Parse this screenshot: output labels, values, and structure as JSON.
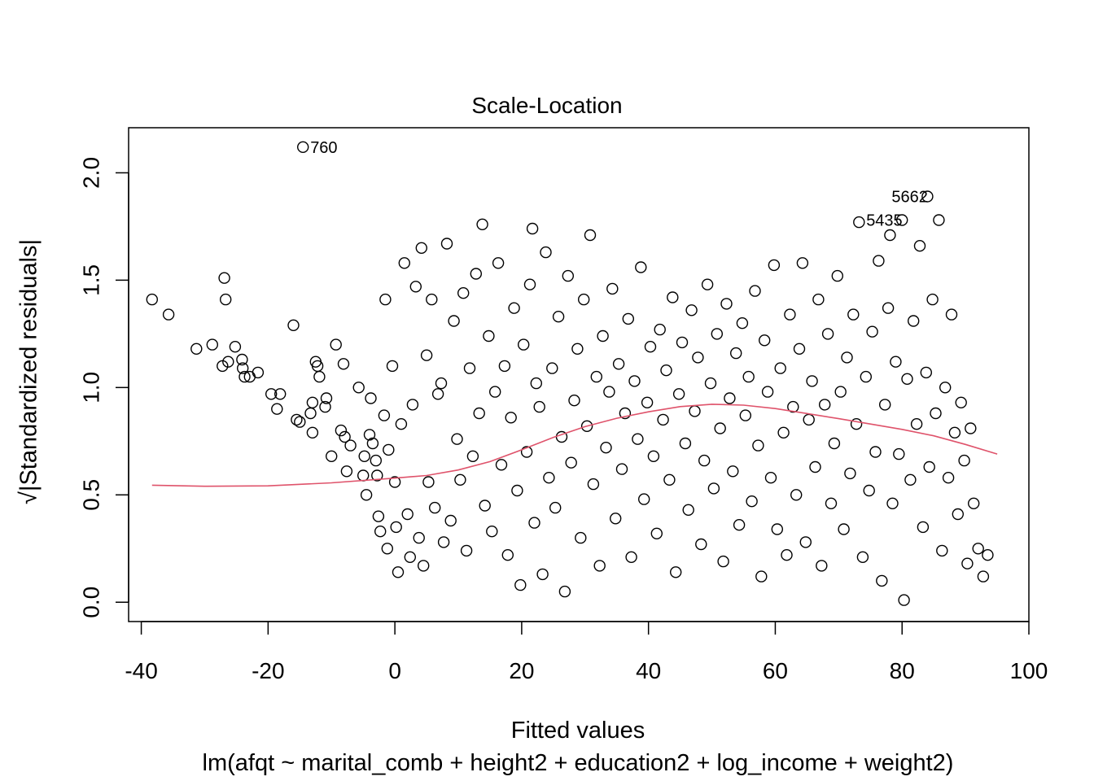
{
  "chart_data": {
    "type": "scatter",
    "title": "Scale-Location",
    "xlabel": "Fitted values",
    "ylabel": "√|Standardized residuals|",
    "subtitle": "lm(afqt ~ marital_comb + height2 + education2 + log_income + weight2)",
    "xlim": [
      -42,
      100
    ],
    "ylim": [
      -0.09,
      2.21
    ],
    "xticks": [
      -40,
      -20,
      0,
      20,
      40,
      60,
      80,
      100
    ],
    "yticks": [
      0.0,
      0.5,
      1.0,
      1.5,
      2.0
    ],
    "ytick_labels": [
      "0.0",
      "0.5",
      "1.0",
      "1.5",
      "2.0"
    ],
    "grid": false,
    "point_color": "#000000",
    "smoother_color": "#DF536B",
    "labeled_points": [
      {
        "label": "760",
        "x": -14.5,
        "y": 2.12
      },
      {
        "label": "5662",
        "x": 84.0,
        "y": 1.89
      },
      {
        "label": "5435",
        "x": 80.0,
        "y": 1.78
      }
    ],
    "smoother": [
      [
        -38.3,
        0.545
      ],
      [
        -30,
        0.54
      ],
      [
        -20,
        0.542
      ],
      [
        -10,
        0.556
      ],
      [
        0,
        0.578
      ],
      [
        5,
        0.59
      ],
      [
        10,
        0.616
      ],
      [
        15,
        0.655
      ],
      [
        20,
        0.71
      ],
      [
        25,
        0.768
      ],
      [
        30,
        0.818
      ],
      [
        35,
        0.857
      ],
      [
        40,
        0.887
      ],
      [
        45,
        0.911
      ],
      [
        50,
        0.922
      ],
      [
        55,
        0.918
      ],
      [
        60,
        0.902
      ],
      [
        65,
        0.879
      ],
      [
        70,
        0.855
      ],
      [
        75,
        0.83
      ],
      [
        80,
        0.805
      ],
      [
        85,
        0.775
      ],
      [
        90,
        0.735
      ],
      [
        95,
        0.69
      ]
    ],
    "points": [
      [
        -38.3,
        1.41
      ],
      [
        -35.7,
        1.34
      ],
      [
        -31.3,
        1.18
      ],
      [
        -28.8,
        1.2
      ],
      [
        -27.2,
        1.1
      ],
      [
        -26.9,
        1.51
      ],
      [
        -26.7,
        1.41
      ],
      [
        -26.3,
        1.12
      ],
      [
        -25.2,
        1.19
      ],
      [
        -24.1,
        1.13
      ],
      [
        -24.0,
        1.09
      ],
      [
        -23.7,
        1.05
      ],
      [
        -22.9,
        1.05
      ],
      [
        -21.6,
        1.07
      ],
      [
        -19.5,
        0.97
      ],
      [
        -18.6,
        0.9
      ],
      [
        -18.1,
        0.97
      ],
      [
        -16.0,
        1.29
      ],
      [
        -15.5,
        0.85
      ],
      [
        -15.0,
        0.84
      ],
      [
        -13.3,
        0.88
      ],
      [
        -13.0,
        0.93
      ],
      [
        -13.0,
        0.79
      ],
      [
        -12.5,
        1.12
      ],
      [
        -12.2,
        1.1
      ],
      [
        -11.9,
        1.05
      ],
      [
        -11.0,
        0.91
      ],
      [
        -10.8,
        0.95
      ],
      [
        -10.0,
        0.68
      ],
      [
        -9.3,
        1.2
      ],
      [
        -8.5,
        0.8
      ],
      [
        -8.1,
        1.11
      ],
      [
        -7.9,
        0.77
      ],
      [
        -7.6,
        0.61
      ],
      [
        -7.0,
        0.73
      ],
      [
        -5.7,
        1.0
      ],
      [
        -5.0,
        0.59
      ],
      [
        -4.8,
        0.68
      ],
      [
        -4.5,
        0.5
      ],
      [
        -4.0,
        0.78
      ],
      [
        -3.8,
        0.95
      ],
      [
        -3.5,
        0.74
      ],
      [
        -3.0,
        0.66
      ],
      [
        -2.8,
        0.59
      ],
      [
        -2.6,
        0.4
      ],
      [
        -2.3,
        0.33
      ],
      [
        -1.7,
        0.87
      ],
      [
        -1.5,
        1.41
      ],
      [
        -1.2,
        0.25
      ],
      [
        -1.0,
        0.71
      ],
      [
        -0.4,
        1.1
      ],
      [
        0.0,
        0.56
      ],
      [
        0.2,
        0.35
      ],
      [
        0.5,
        0.14
      ],
      [
        1.0,
        0.83
      ],
      [
        1.5,
        1.58
      ],
      [
        2.0,
        0.41
      ],
      [
        2.4,
        0.21
      ],
      [
        2.8,
        0.92
      ],
      [
        3.3,
        1.47
      ],
      [
        3.8,
        0.3
      ],
      [
        4.2,
        1.65
      ],
      [
        4.5,
        0.17
      ],
      [
        5.0,
        1.15
      ],
      [
        5.3,
        0.56
      ],
      [
        5.8,
        1.41
      ],
      [
        6.3,
        0.44
      ],
      [
        6.8,
        0.97
      ],
      [
        7.3,
        1.02
      ],
      [
        7.7,
        0.28
      ],
      [
        8.2,
        1.67
      ],
      [
        8.8,
        0.38
      ],
      [
        9.3,
        1.31
      ],
      [
        9.8,
        0.76
      ],
      [
        10.3,
        0.57
      ],
      [
        10.8,
        1.44
      ],
      [
        11.3,
        0.24
      ],
      [
        11.8,
        1.09
      ],
      [
        12.3,
        0.68
      ],
      [
        12.8,
        1.53
      ],
      [
        13.3,
        0.88
      ],
      [
        13.8,
        1.76
      ],
      [
        14.2,
        0.45
      ],
      [
        14.8,
        1.24
      ],
      [
        15.3,
        0.33
      ],
      [
        15.8,
        0.98
      ],
      [
        16.3,
        1.58
      ],
      [
        16.8,
        0.64
      ],
      [
        17.3,
        1.1
      ],
      [
        17.8,
        0.22
      ],
      [
        18.3,
        0.86
      ],
      [
        18.8,
        1.37
      ],
      [
        19.3,
        0.52
      ],
      [
        19.8,
        0.08
      ],
      [
        20.3,
        1.2
      ],
      [
        20.8,
        0.7
      ],
      [
        21.3,
        1.48
      ],
      [
        21.7,
        1.74
      ],
      [
        22.0,
        0.37
      ],
      [
        22.3,
        1.02
      ],
      [
        22.8,
        0.91
      ],
      [
        23.3,
        0.13
      ],
      [
        23.8,
        1.63
      ],
      [
        24.3,
        0.58
      ],
      [
        24.8,
        1.09
      ],
      [
        25.3,
        0.44
      ],
      [
        25.8,
        1.33
      ],
      [
        26.3,
        0.77
      ],
      [
        26.8,
        0.05
      ],
      [
        27.3,
        1.52
      ],
      [
        27.8,
        0.65
      ],
      [
        28.3,
        0.94
      ],
      [
        28.8,
        1.18
      ],
      [
        29.3,
        0.3
      ],
      [
        29.8,
        1.41
      ],
      [
        30.3,
        0.82
      ],
      [
        30.8,
        1.71
      ],
      [
        31.3,
        0.55
      ],
      [
        31.8,
        1.05
      ],
      [
        32.3,
        0.17
      ],
      [
        32.8,
        1.24
      ],
      [
        33.3,
        0.72
      ],
      [
        33.8,
        0.98
      ],
      [
        34.3,
        1.46
      ],
      [
        34.8,
        0.39
      ],
      [
        35.3,
        1.11
      ],
      [
        35.8,
        0.62
      ],
      [
        36.3,
        0.88
      ],
      [
        36.8,
        1.32
      ],
      [
        37.3,
        0.21
      ],
      [
        37.8,
        1.03
      ],
      [
        38.3,
        0.76
      ],
      [
        38.8,
        1.56
      ],
      [
        39.3,
        0.48
      ],
      [
        39.8,
        0.93
      ],
      [
        40.3,
        1.19
      ],
      [
        40.8,
        0.68
      ],
      [
        41.3,
        0.32
      ],
      [
        41.8,
        1.27
      ],
      [
        42.3,
        0.85
      ],
      [
        42.8,
        1.08
      ],
      [
        43.3,
        0.57
      ],
      [
        43.8,
        1.42
      ],
      [
        44.3,
        0.14
      ],
      [
        44.8,
        0.97
      ],
      [
        45.3,
        1.21
      ],
      [
        45.8,
        0.74
      ],
      [
        46.3,
        0.43
      ],
      [
        46.8,
        1.36
      ],
      [
        47.3,
        0.89
      ],
      [
        47.8,
        1.14
      ],
      [
        48.3,
        0.27
      ],
      [
        48.8,
        0.66
      ],
      [
        49.3,
        1.48
      ],
      [
        49.8,
        1.02
      ],
      [
        50.3,
        0.53
      ],
      [
        50.8,
        1.25
      ],
      [
        51.3,
        0.81
      ],
      [
        51.8,
        0.19
      ],
      [
        52.3,
        1.39
      ],
      [
        52.8,
        0.95
      ],
      [
        53.3,
        0.61
      ],
      [
        53.8,
        1.16
      ],
      [
        54.3,
        0.36
      ],
      [
        54.8,
        1.3
      ],
      [
        55.3,
        0.87
      ],
      [
        55.8,
        1.05
      ],
      [
        56.3,
        0.47
      ],
      [
        56.8,
        1.45
      ],
      [
        57.3,
        0.73
      ],
      [
        57.8,
        0.12
      ],
      [
        58.3,
        1.22
      ],
      [
        58.8,
        0.98
      ],
      [
        59.3,
        0.58
      ],
      [
        59.8,
        1.57
      ],
      [
        60.3,
        0.34
      ],
      [
        60.8,
        1.09
      ],
      [
        61.3,
        0.79
      ],
      [
        61.8,
        0.22
      ],
      [
        62.3,
        1.34
      ],
      [
        62.8,
        0.91
      ],
      [
        63.3,
        0.5
      ],
      [
        63.8,
        1.18
      ],
      [
        64.3,
        1.58
      ],
      [
        64.8,
        0.28
      ],
      [
        65.3,
        0.85
      ],
      [
        65.8,
        1.03
      ],
      [
        66.3,
        0.63
      ],
      [
        66.8,
        1.41
      ],
      [
        67.3,
        0.17
      ],
      [
        67.8,
        0.92
      ],
      [
        68.3,
        1.25
      ],
      [
        68.8,
        0.46
      ],
      [
        69.3,
        0.74
      ],
      [
        69.8,
        1.52
      ],
      [
        70.3,
        0.98
      ],
      [
        70.8,
        0.34
      ],
      [
        71.3,
        1.14
      ],
      [
        71.8,
        0.6
      ],
      [
        72.3,
        1.34
      ],
      [
        72.8,
        0.83
      ],
      [
        73.2,
        1.77
      ],
      [
        73.8,
        0.21
      ],
      [
        74.3,
        1.05
      ],
      [
        74.8,
        0.52
      ],
      [
        75.3,
        1.26
      ],
      [
        75.8,
        0.7
      ],
      [
        76.3,
        1.59
      ],
      [
        76.8,
        0.1
      ],
      [
        77.3,
        0.92
      ],
      [
        77.8,
        1.37
      ],
      [
        78.1,
        1.71
      ],
      [
        78.5,
        0.46
      ],
      [
        79.0,
        1.12
      ],
      [
        79.5,
        0.69
      ],
      [
        80.0,
        1.78
      ],
      [
        80.3,
        0.01
      ],
      [
        80.8,
        1.04
      ],
      [
        81.3,
        0.57
      ],
      [
        81.8,
        1.31
      ],
      [
        82.3,
        0.83
      ],
      [
        82.8,
        1.66
      ],
      [
        83.3,
        0.35
      ],
      [
        83.8,
        1.07
      ],
      [
        84.0,
        1.89
      ],
      [
        84.3,
        0.63
      ],
      [
        84.8,
        1.41
      ],
      [
        85.3,
        0.88
      ],
      [
        85.8,
        1.78
      ],
      [
        86.3,
        0.24
      ],
      [
        86.8,
        1.0
      ],
      [
        87.3,
        0.58
      ],
      [
        87.8,
        1.34
      ],
      [
        88.3,
        0.79
      ],
      [
        88.8,
        0.41
      ],
      [
        89.3,
        0.93
      ],
      [
        89.8,
        0.66
      ],
      [
        90.3,
        0.18
      ],
      [
        90.8,
        0.81
      ],
      [
        91.3,
        0.46
      ],
      [
        92.0,
        0.25
      ],
      [
        92.8,
        0.12
      ],
      [
        93.5,
        0.22
      ],
      [
        -14.5,
        2.12
      ]
    ]
  }
}
